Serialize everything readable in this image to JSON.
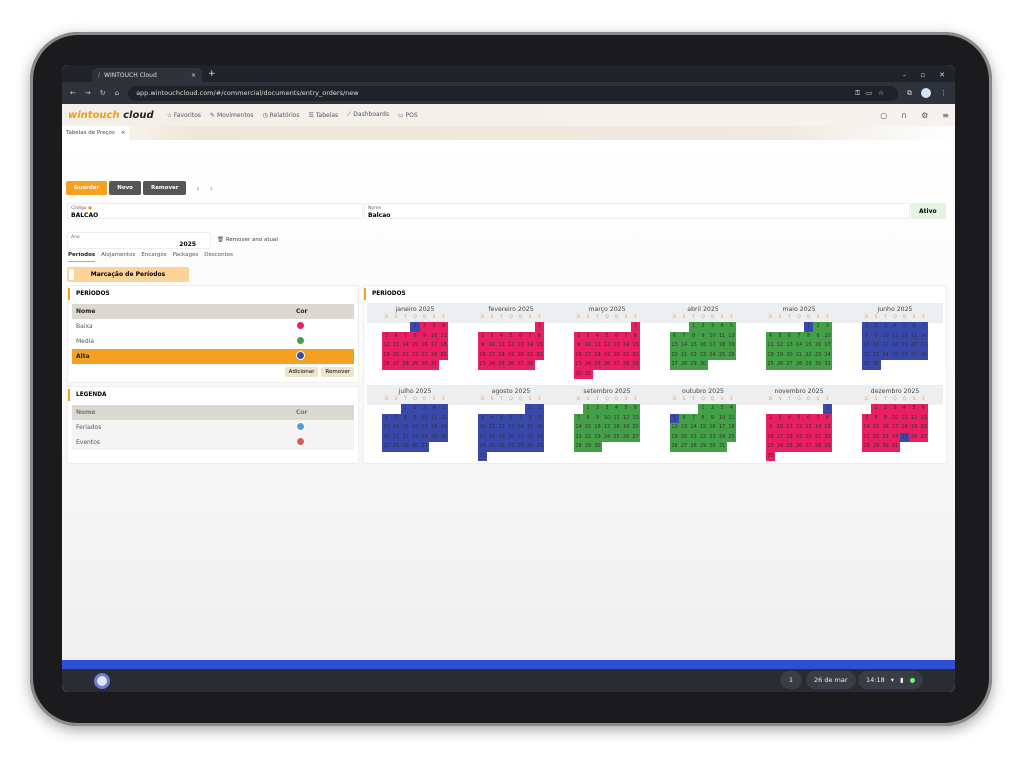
{
  "browser": {
    "tab_title": "WINTOUCH Cloud",
    "url": "app.wintouchcloud.com/#/commercial/documents/entry_orders/new"
  },
  "app": {
    "logo_a": "wintouch",
    "logo_b": "cloud",
    "nav": [
      "Favoritos",
      "Movimentos",
      "Relatórios",
      "Tabelas",
      "Dashboards",
      "POS"
    ],
    "doc_tab": "Tabelas de Preços"
  },
  "toolbar": {
    "save": "Guardar",
    "new": "Novo",
    "remove": "Remover"
  },
  "form": {
    "codigo_label": "Código",
    "codigo": "BALCAO",
    "nome_label": "Nome",
    "nome": "Balcao",
    "ativo": "Ativo",
    "ano_label": "Ano",
    "ano": "2025",
    "remove_year": "Remover ano atual"
  },
  "subtabs": [
    "Períodos",
    "Alojamentos",
    "Encargos",
    "Packages",
    "Descontos"
  ],
  "marcacao": "Marcação de Períodos",
  "periodos": {
    "title": "PERÍODOS",
    "col_nome": "Nome",
    "col_cor": "Cor",
    "rows": [
      {
        "name": "Baixa",
        "color": "#e91e63"
      },
      {
        "name": "Media",
        "color": "#43a047"
      },
      {
        "name": "Alta",
        "color": "#3949ab",
        "selected": true
      }
    ],
    "add": "Adicionar",
    "remove": "Remover"
  },
  "legenda": {
    "title": "LEGENDA",
    "col_nome": "Nome",
    "col_cor": "Cor",
    "rows": [
      {
        "name": "Feriados",
        "color": "#5b9bd5"
      },
      {
        "name": "Eventos",
        "color": "#e05a5a"
      }
    ]
  },
  "calendar": {
    "title": "PERÍODOS",
    "weekdays": [
      "D",
      "S",
      "T",
      "Q",
      "Q",
      "S",
      "S"
    ],
    "months": [
      {
        "name": "janeiro 2025",
        "start": 3,
        "days": 31,
        "base": "Baixa",
        "over": {
          "1": "Alta"
        }
      },
      {
        "name": "fevereiro 2025",
        "start": 6,
        "days": 28,
        "base": "Baixa",
        "over": {}
      },
      {
        "name": "março 2025",
        "start": 6,
        "days": 31,
        "base": "Baixa",
        "over": {}
      },
      {
        "name": "abril 2025",
        "start": 2,
        "days": 30,
        "base": "Media",
        "over": {}
      },
      {
        "name": "maio 2025",
        "start": 4,
        "days": 31,
        "base": "Media",
        "over": {
          "1": "Alta"
        }
      },
      {
        "name": "junho 2025",
        "start": 0,
        "days": 30,
        "base": "Alta",
        "over": {}
      },
      {
        "name": "julho 2025",
        "start": 2,
        "days": 31,
        "base": "Alta",
        "over": {}
      },
      {
        "name": "agosto 2025",
        "start": 5,
        "days": 31,
        "base": "Alta",
        "over": {}
      },
      {
        "name": "setembro 2025",
        "start": 1,
        "days": 30,
        "base": "Media",
        "over": {}
      },
      {
        "name": "outubro 2025",
        "start": 3,
        "days": 31,
        "base": "Media",
        "over": {
          "5": "Alta"
        }
      },
      {
        "name": "novembro 2025",
        "start": 6,
        "days": 30,
        "base": "Baixa",
        "over": {
          "1": "Alta"
        }
      },
      {
        "name": "dezembro 2025",
        "start": 1,
        "days": 31,
        "base": "Baixa",
        "over": {
          "25": "Alta"
        }
      }
    ]
  },
  "shelf": {
    "date": "26 de mar",
    "time": "14:18"
  }
}
